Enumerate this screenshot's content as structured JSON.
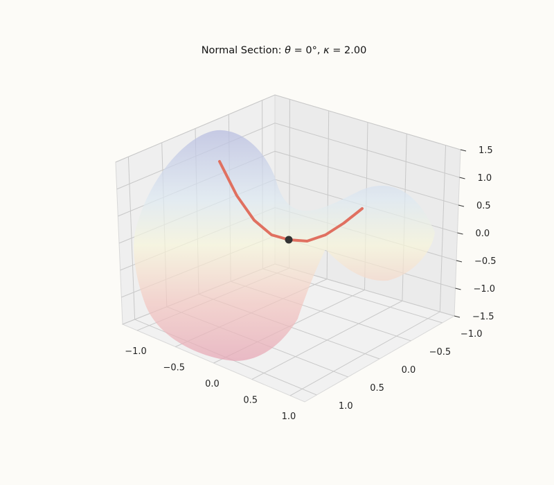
{
  "chart_data": {
    "type": "surface3d",
    "title_parts": [
      "Normal Section: ",
      "θ",
      " = 0°, ",
      "κ",
      " = 2.00"
    ],
    "xlabel": "",
    "ylabel": "",
    "zlabel": "",
    "xlim": [
      -1.2,
      1.2
    ],
    "ylim": [
      -1.2,
      1.2
    ],
    "zlim": [
      -1.5,
      1.5
    ],
    "x_ticks": [
      "−1.0",
      "−0.5",
      "0.0",
      "0.5",
      "1.0"
    ],
    "y_ticks": [
      "−1.0",
      "−0.5",
      "0.0",
      "0.5",
      "1.0"
    ],
    "z_ticks": [
      "−1.5",
      "−1.0",
      "−0.5",
      "0.0",
      "0.5",
      "1.0",
      "1.5"
    ],
    "surface": "saddle z = x² − y² (monkey-saddle-like sheet), colormap RdYlBu reversed, semi-transparent",
    "normal_section_curve": {
      "color": "#e07060",
      "x": [
        -1.0,
        -0.75,
        -0.5,
        -0.25,
        0.0,
        0.25,
        0.5,
        0.75,
        1.0
      ],
      "z": [
        1.0,
        0.5625,
        0.25,
        0.0625,
        0.0,
        0.0625,
        0.25,
        0.5625,
        1.0
      ]
    },
    "point": {
      "x": 0,
      "y": 0,
      "z": 0,
      "color": "#333333"
    },
    "grid": true
  },
  "figure": {
    "background": "#fcfbf7",
    "pane_color": "#f2f2f2",
    "grid_color": "#c8c8c8"
  }
}
